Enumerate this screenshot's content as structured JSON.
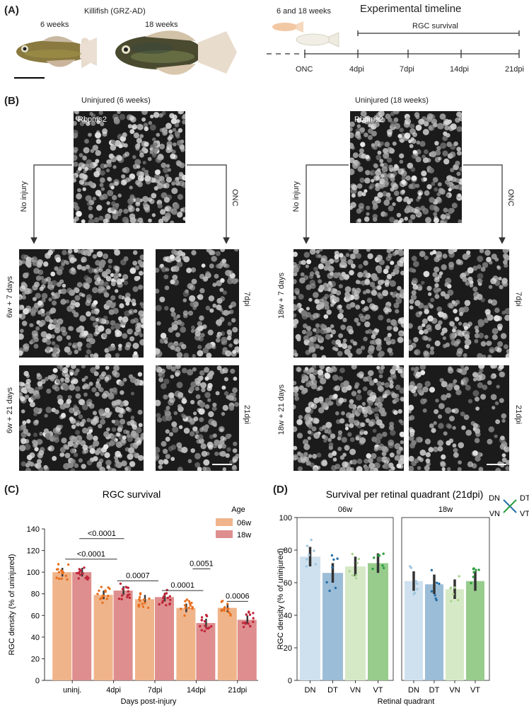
{
  "panelA": {
    "label": "(A)",
    "title": "Killifish (GRZ-AD)",
    "fish_young": "6 weeks",
    "fish_old": "18 weeks",
    "timeline_title": "Experimental timeline",
    "timeline_ages": "6 and 18 weeks",
    "survival_label": "RGC survival",
    "ticks": [
      "ONC",
      "4dpi",
      "7dpi",
      "14dpi",
      "21dpi"
    ]
  },
  "panelB": {
    "label": "(B)",
    "left_title": "Uninjured (6 weeks)",
    "right_title": "Uninjured (18 weeks)",
    "stain": "Rbpms2",
    "no_injury": "No injury",
    "onc": "ONC",
    "left_row1": "6w + 7 days",
    "left_row2": "6w + 21 days",
    "right_row1": "18w + 7 days",
    "right_row2": "18w + 21 days",
    "dpi7": "7dpi",
    "dpi21": "21dpi"
  },
  "panelC": {
    "label": "(C)"
  },
  "panelD": {
    "label": "(D)"
  },
  "chart_data": [
    {
      "type": "bar",
      "title": "RGC survival",
      "xlabel": "Days post-injury",
      "ylabel": "RGC density (% of uninjured)",
      "ylim": [
        0,
        140
      ],
      "yticks": [
        0,
        20,
        40,
        60,
        80,
        100,
        120,
        140
      ],
      "categories": [
        "uninj.",
        "4dpi",
        "7dpi",
        "14dpi",
        "21dpi"
      ],
      "legend_title": "Age",
      "series": [
        {
          "name": "06w",
          "values": [
            100,
            79,
            75,
            67,
            67
          ],
          "color": "#f0b48a",
          "dot": "#e8701f"
        },
        {
          "name": "18w",
          "values": [
            100,
            83,
            77,
            53,
            56
          ],
          "color": "#de8e8e",
          "dot": "#c0263a"
        }
      ],
      "annotations": [
        "<0.0001",
        "<0.0001",
        "0.0007",
        "0.0001",
        "0.0051",
        "0.0006"
      ]
    },
    {
      "type": "bar",
      "title": "Survival per retinal quadrant (21dpi)",
      "xlabel": "Retinal quadrant",
      "ylabel": "RGC density (% of uninjured)",
      "ylim": [
        0,
        100
      ],
      "yticks": [
        0,
        20,
        40,
        60,
        80,
        100
      ],
      "categories": [
        "DN",
        "DT",
        "VN",
        "VT"
      ],
      "facets": [
        {
          "name": "06w",
          "values": [
            76,
            66,
            70,
            72
          ]
        },
        {
          "name": "18w",
          "values": [
            61,
            59,
            56,
            61
          ]
        }
      ],
      "colors": [
        "#cfe1ee",
        "#9cbdd7",
        "#d6e9c6",
        "#98cc8d"
      ],
      "dot_colors": [
        "#9ec6e0",
        "#2470a8",
        "#a9d58e",
        "#2e9e3f"
      ],
      "compass": [
        "DN",
        "DT",
        "VN",
        "VT"
      ]
    }
  ]
}
